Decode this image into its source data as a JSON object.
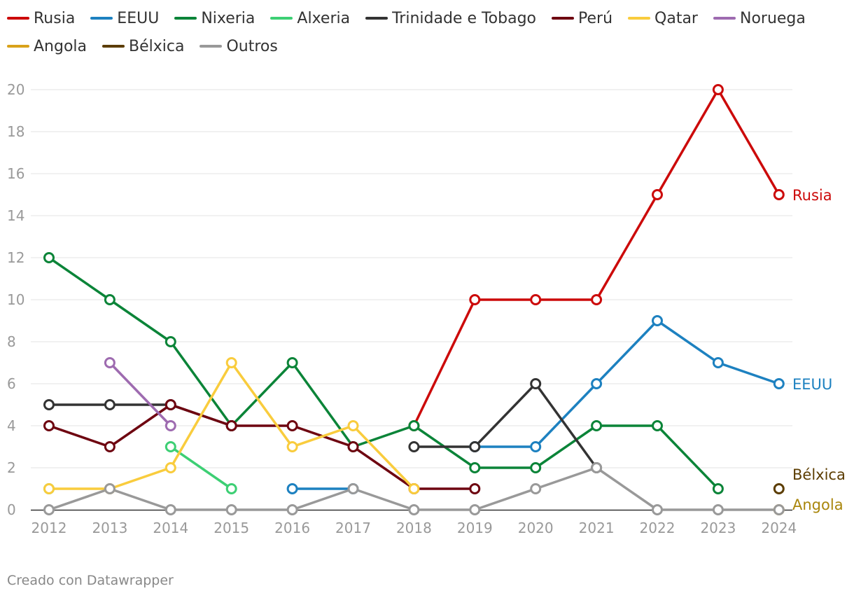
{
  "chart_data": {
    "type": "line",
    "title": "",
    "xlabel": "",
    "ylabel": "",
    "x": [
      2012,
      2013,
      2014,
      2015,
      2016,
      2017,
      2018,
      2019,
      2020,
      2021,
      2022,
      2023,
      2024
    ],
    "x_tick_labels": [
      "2012",
      "2013",
      "2014",
      "2015",
      "2016",
      "2017",
      "2018",
      "2019",
      "2020",
      "2021",
      "2022",
      "2023",
      "2024"
    ],
    "ylim": [
      0,
      20
    ],
    "y_ticks": [
      0,
      2,
      4,
      6,
      8,
      10,
      12,
      14,
      16,
      18,
      20
    ],
    "y_tick_labels": [
      "0",
      "2",
      "4",
      "6",
      "8",
      "10",
      "12",
      "14",
      "16",
      "18",
      "20"
    ],
    "grid": true,
    "legend_position": "top",
    "series": [
      {
        "name": "Rusia",
        "color": "#cc0a0a",
        "values": [
          null,
          null,
          null,
          null,
          null,
          null,
          4,
          10,
          10,
          10,
          15,
          20,
          15
        ],
        "end_label": "Rusia"
      },
      {
        "name": "EEUU",
        "color": "#1d81c0",
        "values": [
          null,
          null,
          null,
          null,
          1,
          1,
          null,
          3,
          3,
          6,
          9,
          7,
          6
        ],
        "end_label": "EEUU"
      },
      {
        "name": "Nixeria",
        "color": "#0b8438",
        "values": [
          12,
          10,
          8,
          4,
          7,
          3,
          4,
          2,
          2,
          4,
          4,
          1,
          null
        ]
      },
      {
        "name": "Alxeria",
        "color": "#3dcf74",
        "values": [
          1,
          null,
          3,
          1,
          null,
          null,
          null,
          null,
          null,
          null,
          null,
          null,
          null
        ]
      },
      {
        "name": "Trinidade e Tobago",
        "color": "#333333",
        "values": [
          5,
          5,
          5,
          4,
          null,
          null,
          3,
          3,
          6,
          2,
          null,
          null,
          null
        ]
      },
      {
        "name": "Perú",
        "color": "#6e0410",
        "values": [
          4,
          3,
          5,
          4,
          4,
          3,
          1,
          1,
          null,
          null,
          null,
          null,
          null
        ]
      },
      {
        "name": "Qatar",
        "color": "#f9cc3d",
        "values": [
          1,
          1,
          2,
          7,
          3,
          4,
          1,
          null,
          null,
          null,
          null,
          null,
          null
        ]
      },
      {
        "name": "Noruega",
        "color": "#9e6bb0",
        "values": [
          null,
          7,
          4,
          null,
          null,
          null,
          null,
          null,
          null,
          null,
          null,
          null,
          null
        ]
      },
      {
        "name": "Angola",
        "color": "#d9a21a",
        "values": [
          null,
          null,
          null,
          null,
          null,
          null,
          null,
          null,
          null,
          null,
          null,
          null,
          0
        ],
        "end_label": "Angola",
        "end_label_color": "#a9860c"
      },
      {
        "name": "Bélxica",
        "color": "#5c3d02",
        "values": [
          null,
          null,
          null,
          null,
          null,
          null,
          null,
          null,
          null,
          null,
          null,
          null,
          1
        ],
        "end_label": "Bélxica"
      },
      {
        "name": "Outros",
        "color": "#999999",
        "values": [
          0,
          1,
          0,
          0,
          0,
          1,
          0,
          0,
          1,
          2,
          0,
          0,
          0
        ]
      }
    ]
  },
  "footer": {
    "source": "Creado con Datawrapper"
  }
}
